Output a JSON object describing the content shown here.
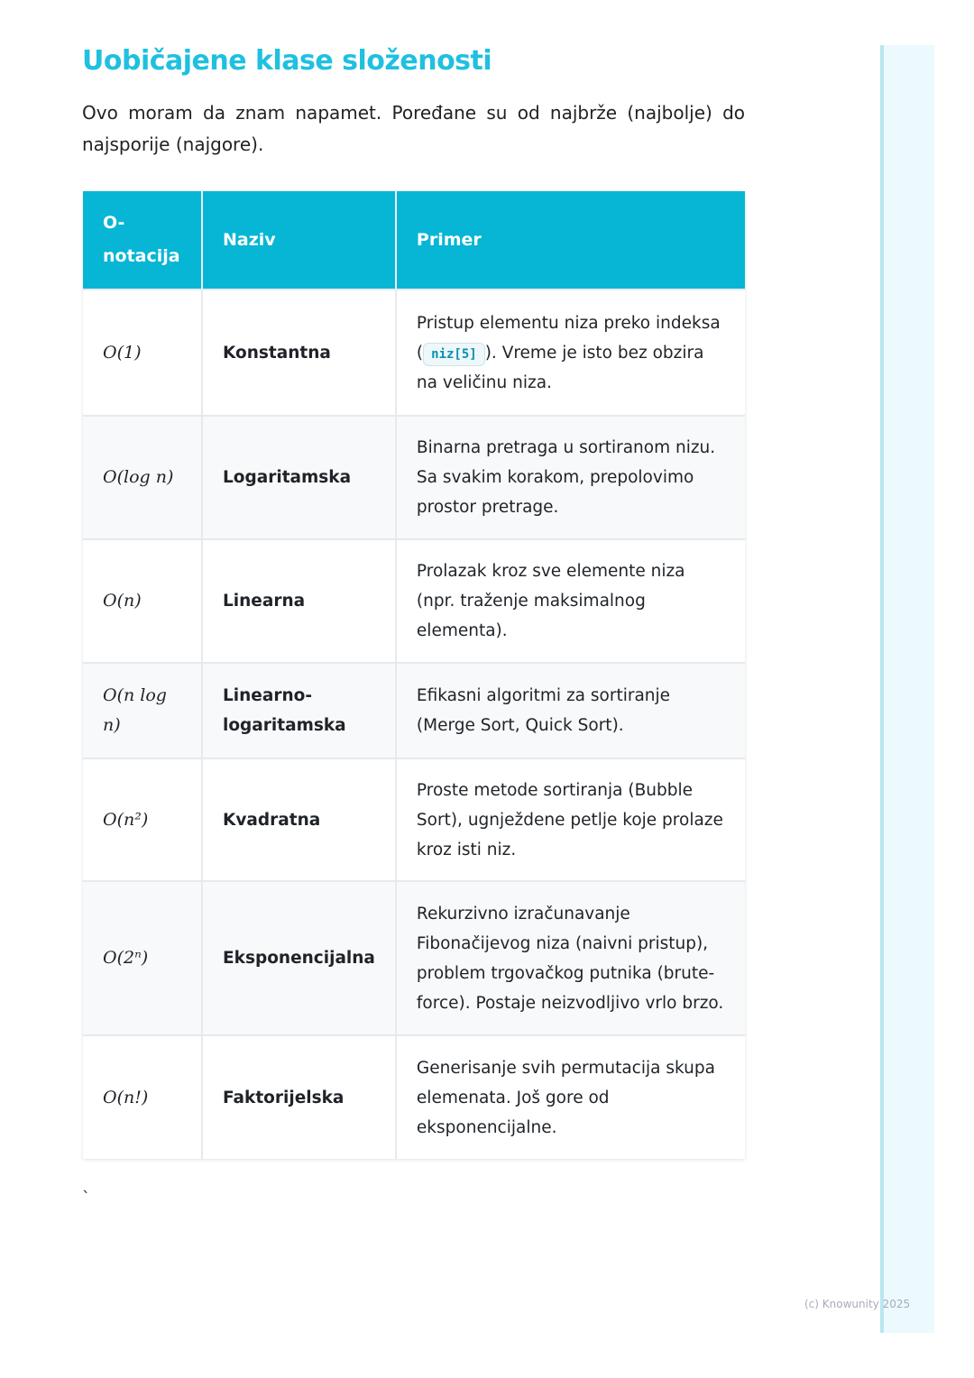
{
  "title": "Uobičajene klase složenosti",
  "intro": "Ovo moram da znam napamet. Poređane su od najbrže (najbolje) do najsporije (najgore).",
  "table": {
    "headers": [
      "O-notacija",
      "Naziv",
      "Primer"
    ],
    "rows": [
      {
        "notation": "O(1)",
        "name": "Konstantna",
        "desc_pre": "Pristup elementu niza preko indeksa (",
        "code": "niz[5]",
        "desc_post": "). Vreme je isto bez obzira na veličinu niza."
      },
      {
        "notation": "O(log n)",
        "name": "Logaritamska",
        "desc": "Binarna pretraga u sortiranom nizu. Sa svakim korakom, prepolovimo prostor pretrage."
      },
      {
        "notation": "O(n)",
        "name": "Linearna",
        "desc": "Prolazak kroz sve elemente niza (npr. traženje maksimalnog elementa)."
      },
      {
        "notation": "O(n log n)",
        "name": "Linearno-logaritamska",
        "desc": "Efikasni algoritmi za sortiranje (Merge Sort, Quick Sort)."
      },
      {
        "notation": "O(n²)",
        "name": "Kvadratna",
        "desc": "Proste metode sortiranja (Bubble Sort), ugnježdene petlje koje prolaze kroz isti niz."
      },
      {
        "notation": "O(2ⁿ)",
        "name": "Eksponencijalna",
        "desc": "Rekurzivno izračunavanje Fibonačijevog niza (naivni pristup), problem trgovačkog putnika (brute-force). Postaje neizvodljivo vrlo brzo."
      },
      {
        "notation": "O(n!)",
        "name": "Faktorijelska",
        "desc": "Generisanje svih permutacija skupa elemenata. Još gore od eksponencijalne."
      }
    ]
  },
  "stray_mark": "`",
  "footer": "(c) Knowunity 2025",
  "colors": {
    "accent": "#1fc0e0",
    "header_bg": "#06b6d4"
  }
}
